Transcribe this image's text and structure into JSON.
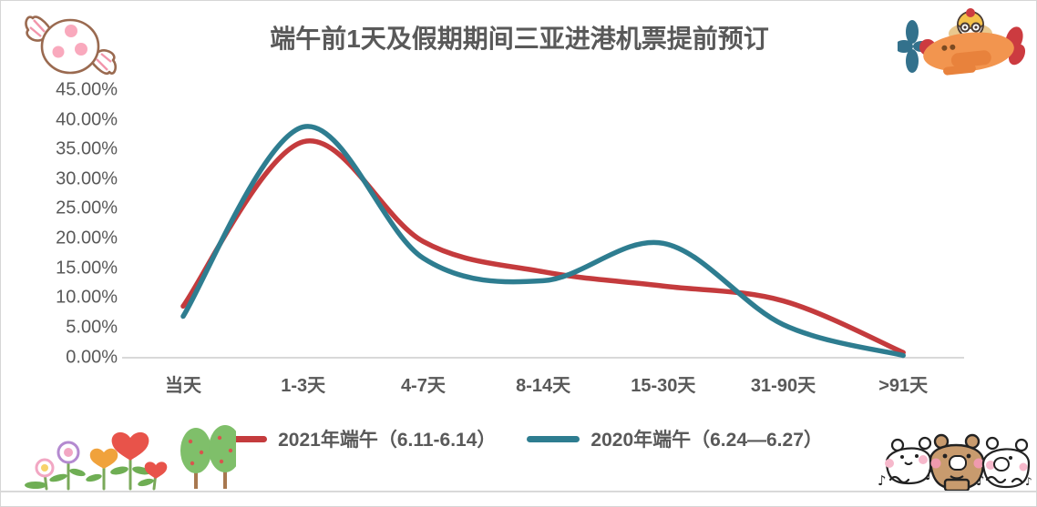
{
  "chart_data": {
    "type": "line",
    "smooth": true,
    "grid": false,
    "title": "端午前1天及假期期间三亚进港机票提前预订",
    "categories": [
      "当天",
      "1-3天",
      "4-7天",
      "8-14天",
      "15-30天",
      "31-90天",
      ">91天"
    ],
    "series": [
      {
        "name": "2021年端午（6.11-6.14）",
        "color": "#c43b3d",
        "values": [
          8.6,
          36.3,
          19.5,
          14.4,
          12.0,
          9.5,
          0.8
        ]
      },
      {
        "name": "2020年端午（6.24—6.27）",
        "color": "#2e7d90",
        "values": [
          6.9,
          38.8,
          16.7,
          12.9,
          19.2,
          5.5,
          0.3
        ]
      }
    ],
    "y_ticks": [
      "45.00%",
      "40.00%",
      "35.00%",
      "30.00%",
      "25.00%",
      "20.00%",
      "15.00%",
      "10.00%",
      "5.00%",
      "0.00%"
    ],
    "y_tick_values": [
      45,
      40,
      35,
      30,
      25,
      20,
      15,
      10,
      5,
      0
    ],
    "ylim": [
      0,
      45
    ],
    "xlabel": "",
    "ylabel": "",
    "legend_position": "bottom",
    "axis_color": "#d9d9d9",
    "label_color": "#595959"
  },
  "decorations": {
    "candy_icon": "pink-wrapped-candy",
    "airplane_icon": "bear-pilot-in-orange-airplane",
    "garden_icon": "heart-flowers-and-trees",
    "bears_icon": "three-singing-bears",
    "music_notes": [
      "♪",
      "♪",
      "♪",
      "♫"
    ]
  }
}
